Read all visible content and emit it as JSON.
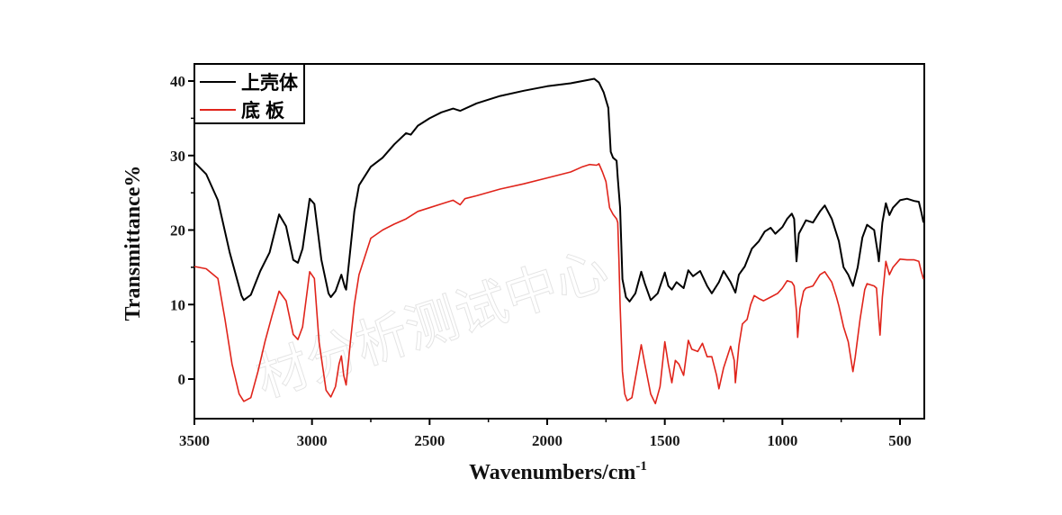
{
  "chart_data": {
    "type": "line",
    "title": "",
    "xlabel": "Wavenumbers/cm",
    "xlabel_superscript": "-1",
    "ylabel": "Transmittance%",
    "xlim": [
      3500,
      400
    ],
    "ylim": [
      -5,
      42
    ],
    "x_ticks": [
      3500,
      3000,
      2500,
      2000,
      1500,
      1000,
      500
    ],
    "x_tick_labels": [
      "3500",
      "3000",
      "2500",
      "2000",
      "1500",
      "1000",
      "500"
    ],
    "y_ticks": [
      0,
      10,
      20,
      30,
      40
    ],
    "y_tick_labels": [
      "0",
      "10",
      "20",
      "30",
      "40"
    ],
    "grid": false,
    "legend_position": "upper-left",
    "watermark": "材分析测试中心",
    "series": [
      {
        "name": "上壳体",
        "color": "#000000",
        "points": [
          [
            3500,
            29.1
          ],
          [
            3450,
            27.5
          ],
          [
            3400,
            24.0
          ],
          [
            3350,
            17.0
          ],
          [
            3300,
            11.2
          ],
          [
            3290,
            10.6
          ],
          [
            3260,
            11.3
          ],
          [
            3220,
            14.5
          ],
          [
            3180,
            17.0
          ],
          [
            3140,
            22.1
          ],
          [
            3110,
            20.5
          ],
          [
            3080,
            16.0
          ],
          [
            3060,
            15.6
          ],
          [
            3040,
            17.5
          ],
          [
            3010,
            24.2
          ],
          [
            2990,
            23.5
          ],
          [
            2960,
            16.0
          ],
          [
            2930,
            11.5
          ],
          [
            2920,
            11.0
          ],
          [
            2900,
            11.8
          ],
          [
            2875,
            14.0
          ],
          [
            2860,
            12.3
          ],
          [
            2855,
            12.0
          ],
          [
            2840,
            16.5
          ],
          [
            2820,
            22.5
          ],
          [
            2800,
            26.0
          ],
          [
            2750,
            28.5
          ],
          [
            2700,
            29.7
          ],
          [
            2650,
            31.5
          ],
          [
            2600,
            33.0
          ],
          [
            2580,
            32.8
          ],
          [
            2550,
            34.0
          ],
          [
            2500,
            35.0
          ],
          [
            2450,
            35.8
          ],
          [
            2400,
            36.3
          ],
          [
            2370,
            36.0
          ],
          [
            2300,
            37.0
          ],
          [
            2200,
            38.0
          ],
          [
            2100,
            38.7
          ],
          [
            2000,
            39.3
          ],
          [
            1900,
            39.7
          ],
          [
            1850,
            40.0
          ],
          [
            1800,
            40.3
          ],
          [
            1780,
            39.8
          ],
          [
            1760,
            38.5
          ],
          [
            1740,
            36.4
          ],
          [
            1730,
            30.5
          ],
          [
            1720,
            29.7
          ],
          [
            1705,
            29.3
          ],
          [
            1700,
            27.0
          ],
          [
            1690,
            23.0
          ],
          [
            1680,
            13.4
          ],
          [
            1665,
            11.0
          ],
          [
            1650,
            10.4
          ],
          [
            1625,
            11.5
          ],
          [
            1600,
            14.4
          ],
          [
            1585,
            12.8
          ],
          [
            1560,
            10.6
          ],
          [
            1530,
            11.5
          ],
          [
            1500,
            14.3
          ],
          [
            1485,
            12.5
          ],
          [
            1470,
            12.0
          ],
          [
            1450,
            13.0
          ],
          [
            1420,
            12.2
          ],
          [
            1400,
            14.6
          ],
          [
            1380,
            13.8
          ],
          [
            1350,
            14.5
          ],
          [
            1320,
            12.5
          ],
          [
            1300,
            11.5
          ],
          [
            1270,
            13.0
          ],
          [
            1250,
            14.5
          ],
          [
            1220,
            13.0
          ],
          [
            1200,
            11.6
          ],
          [
            1185,
            14.0
          ],
          [
            1160,
            15.1
          ],
          [
            1130,
            17.5
          ],
          [
            1100,
            18.5
          ],
          [
            1075,
            19.8
          ],
          [
            1050,
            20.3
          ],
          [
            1030,
            19.5
          ],
          [
            1000,
            20.4
          ],
          [
            980,
            21.5
          ],
          [
            960,
            22.2
          ],
          [
            950,
            21.5
          ],
          [
            940,
            15.8
          ],
          [
            930,
            19.5
          ],
          [
            900,
            21.3
          ],
          [
            870,
            21.0
          ],
          [
            840,
            22.5
          ],
          [
            820,
            23.3
          ],
          [
            790,
            21.5
          ],
          [
            760,
            18.5
          ],
          [
            740,
            15.0
          ],
          [
            720,
            14.0
          ],
          [
            700,
            12.5
          ],
          [
            680,
            15.0
          ],
          [
            660,
            19.0
          ],
          [
            640,
            20.7
          ],
          [
            610,
            20.0
          ],
          [
            595,
            17.0
          ],
          [
            590,
            15.8
          ],
          [
            575,
            21.0
          ],
          [
            560,
            23.6
          ],
          [
            545,
            22.0
          ],
          [
            530,
            23.0
          ],
          [
            500,
            24.0
          ],
          [
            470,
            24.2
          ],
          [
            440,
            23.9
          ],
          [
            420,
            23.8
          ],
          [
            410,
            22.5
          ],
          [
            400,
            21.0
          ]
        ]
      },
      {
        "name": "底板",
        "color": "#e0241b",
        "points": [
          [
            3500,
            15.1
          ],
          [
            3450,
            14.8
          ],
          [
            3400,
            13.5
          ],
          [
            3370,
            8.0
          ],
          [
            3340,
            2.0
          ],
          [
            3310,
            -2.0
          ],
          [
            3290,
            -3.0
          ],
          [
            3260,
            -2.5
          ],
          [
            3230,
            1.0
          ],
          [
            3200,
            5.0
          ],
          [
            3170,
            8.5
          ],
          [
            3140,
            11.8
          ],
          [
            3110,
            10.5
          ],
          [
            3080,
            6.0
          ],
          [
            3060,
            5.3
          ],
          [
            3040,
            7.0
          ],
          [
            3010,
            14.4
          ],
          [
            2990,
            13.5
          ],
          [
            2970,
            5.0
          ],
          [
            2940,
            -1.5
          ],
          [
            2920,
            -2.4
          ],
          [
            2900,
            -1.0
          ],
          [
            2885,
            2.0
          ],
          [
            2875,
            3.1
          ],
          [
            2865,
            0.5
          ],
          [
            2855,
            -0.8
          ],
          [
            2840,
            4.0
          ],
          [
            2820,
            10.0
          ],
          [
            2800,
            14.0
          ],
          [
            2750,
            18.9
          ],
          [
            2700,
            20.0
          ],
          [
            2650,
            20.8
          ],
          [
            2600,
            21.5
          ],
          [
            2550,
            22.5
          ],
          [
            2500,
            23.0
          ],
          [
            2450,
            23.5
          ],
          [
            2400,
            24.0
          ],
          [
            2370,
            23.4
          ],
          [
            2350,
            24.2
          ],
          [
            2300,
            24.6
          ],
          [
            2200,
            25.5
          ],
          [
            2100,
            26.2
          ],
          [
            2000,
            27.0
          ],
          [
            1900,
            27.8
          ],
          [
            1850,
            28.5
          ],
          [
            1820,
            28.8
          ],
          [
            1790,
            28.7
          ],
          [
            1780,
            28.9
          ],
          [
            1765,
            27.8
          ],
          [
            1750,
            26.5
          ],
          [
            1735,
            23.0
          ],
          [
            1720,
            22.1
          ],
          [
            1705,
            21.5
          ],
          [
            1700,
            21.0
          ],
          [
            1695,
            16.0
          ],
          [
            1690,
            10.0
          ],
          [
            1680,
            1.0
          ],
          [
            1670,
            -2.0
          ],
          [
            1660,
            -2.9
          ],
          [
            1640,
            -2.5
          ],
          [
            1620,
            1.0
          ],
          [
            1600,
            4.6
          ],
          [
            1585,
            2.0
          ],
          [
            1560,
            -2.0
          ],
          [
            1540,
            -3.3
          ],
          [
            1520,
            -1.0
          ],
          [
            1500,
            5.0
          ],
          [
            1485,
            2.0
          ],
          [
            1470,
            -0.5
          ],
          [
            1455,
            2.5
          ],
          [
            1440,
            2.0
          ],
          [
            1420,
            0.5
          ],
          [
            1400,
            5.2
          ],
          [
            1385,
            4.0
          ],
          [
            1360,
            3.7
          ],
          [
            1340,
            4.8
          ],
          [
            1320,
            3.0
          ],
          [
            1300,
            3.0
          ],
          [
            1280,
            0.5
          ],
          [
            1270,
            -1.3
          ],
          [
            1250,
            1.5
          ],
          [
            1220,
            4.4
          ],
          [
            1205,
            2.5
          ],
          [
            1200,
            -0.5
          ],
          [
            1185,
            4.5
          ],
          [
            1170,
            7.4
          ],
          [
            1150,
            8.0
          ],
          [
            1135,
            10.0
          ],
          [
            1120,
            11.2
          ],
          [
            1100,
            10.8
          ],
          [
            1080,
            10.5
          ],
          [
            1050,
            11.0
          ],
          [
            1020,
            11.5
          ],
          [
            1000,
            12.2
          ],
          [
            980,
            13.2
          ],
          [
            960,
            13.0
          ],
          [
            950,
            12.5
          ],
          [
            940,
            9.0
          ],
          [
            935,
            5.6
          ],
          [
            925,
            9.5
          ],
          [
            910,
            11.8
          ],
          [
            900,
            12.2
          ],
          [
            870,
            12.5
          ],
          [
            840,
            14.0
          ],
          [
            820,
            14.4
          ],
          [
            790,
            13.0
          ],
          [
            770,
            11.0
          ],
          [
            760,
            9.8
          ],
          [
            740,
            7.0
          ],
          [
            720,
            5.0
          ],
          [
            710,
            3.0
          ],
          [
            700,
            1.0
          ],
          [
            690,
            3.0
          ],
          [
            670,
            8.0
          ],
          [
            650,
            12.0
          ],
          [
            640,
            12.8
          ],
          [
            610,
            12.5
          ],
          [
            600,
            12.2
          ],
          [
            590,
            8.0
          ],
          [
            585,
            5.9
          ],
          [
            575,
            11.0
          ],
          [
            560,
            15.8
          ],
          [
            545,
            14.0
          ],
          [
            530,
            15.0
          ],
          [
            500,
            16.1
          ],
          [
            470,
            16.0
          ],
          [
            440,
            16.0
          ],
          [
            420,
            15.8
          ],
          [
            410,
            14.5
          ],
          [
            400,
            13.4
          ]
        ]
      }
    ]
  },
  "legend": {
    "items": [
      {
        "label": "上壳体",
        "color": "#000000"
      },
      {
        "label": "底板",
        "color": "#e0241b"
      }
    ]
  },
  "axes": {
    "xlabel": "Wavenumbers/cm",
    "xlabel_sup": "-1",
    "ylabel": "Transmittance%"
  }
}
